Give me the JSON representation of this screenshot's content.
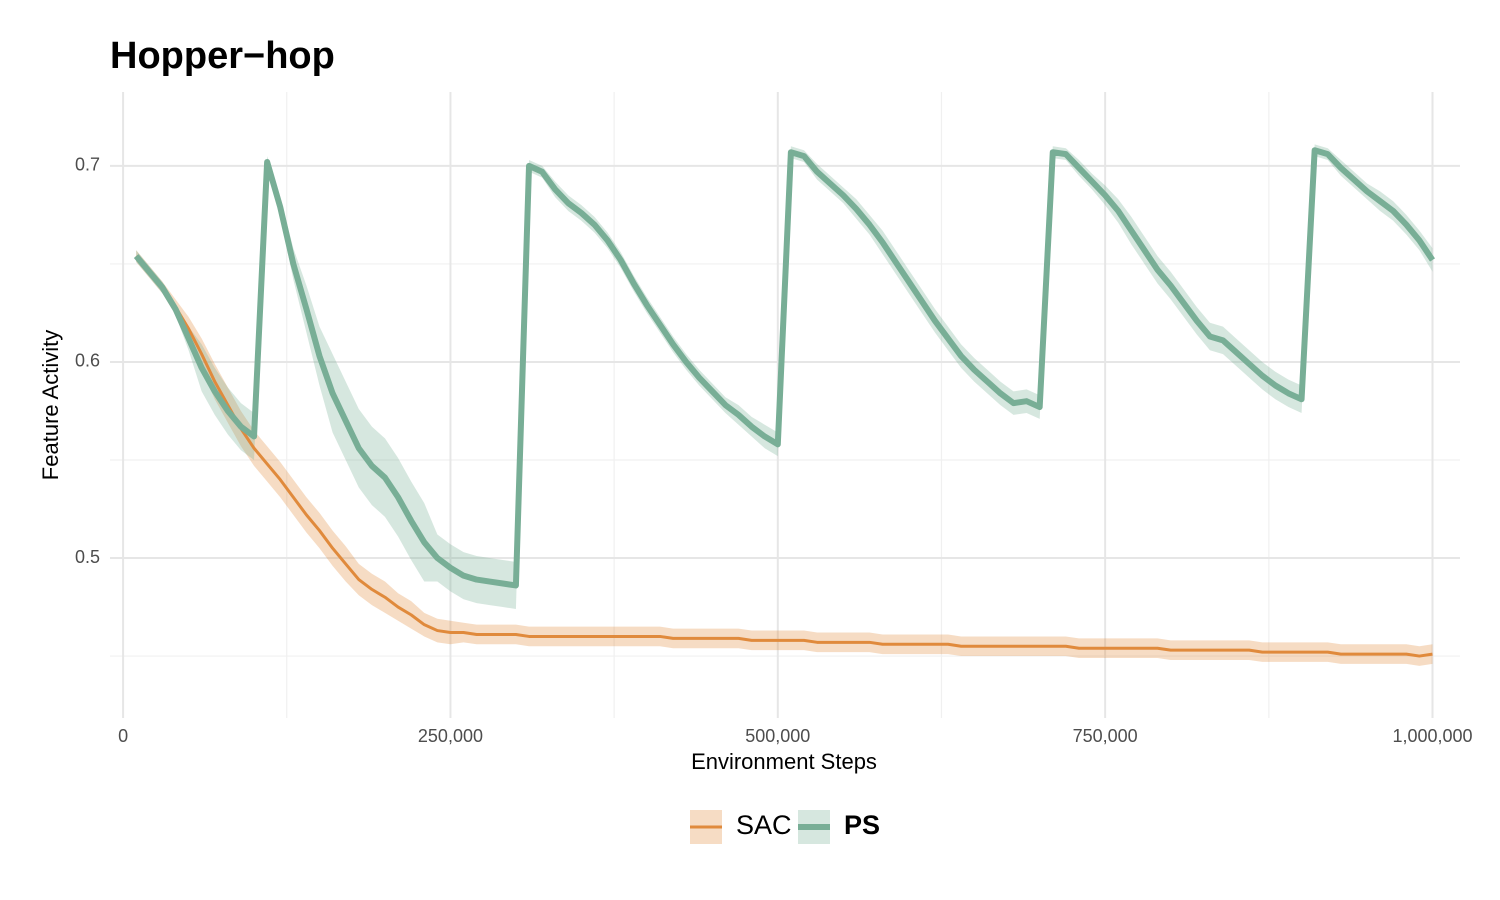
{
  "chart_data": {
    "type": "line",
    "title": "Hopper−hop",
    "x_label": "Environment Steps",
    "y_label": "Feature Activity",
    "xlim": [
      -10000,
      1021000
    ],
    "ylim": [
      0.4184,
      0.7377
    ],
    "xticks": [
      0,
      {
        "value": 250000,
        "label": "250,000"
      },
      {
        "value": 500000,
        "label": "500,000"
      },
      {
        "value": 750000,
        "label": "750,000"
      },
      {
        "value": 1000000,
        "label": "1,000,000"
      }
    ],
    "yticks": [
      0.5,
      0.6,
      0.7
    ],
    "x_minor_ticks": [
      125000,
      375000,
      625000,
      875000
    ],
    "y_minor_ticks": [
      0.45,
      0.55,
      0.65
    ],
    "grid": true,
    "legend_position": "bottom",
    "x": [
      10000,
      20000,
      30000,
      40000,
      50000,
      60000,
      70000,
      80000,
      90000,
      100000,
      110000,
      120000,
      130000,
      140000,
      150000,
      160000,
      170000,
      180000,
      190000,
      200000,
      210000,
      220000,
      230000,
      240000,
      250000,
      260000,
      270000,
      280000,
      290000,
      300000,
      310000,
      320000,
      330000,
      340000,
      350000,
      360000,
      370000,
      380000,
      390000,
      400000,
      410000,
      420000,
      430000,
      440000,
      450000,
      460000,
      470000,
      480000,
      490000,
      500000,
      510000,
      520000,
      530000,
      540000,
      550000,
      560000,
      570000,
      580000,
      590000,
      600000,
      610000,
      620000,
      630000,
      640000,
      650000,
      660000,
      670000,
      680000,
      690000,
      700000,
      710000,
      720000,
      730000,
      740000,
      750000,
      760000,
      770000,
      780000,
      790000,
      800000,
      810000,
      820000,
      830000,
      840000,
      850000,
      860000,
      870000,
      880000,
      890000,
      900000,
      910000,
      920000,
      930000,
      940000,
      950000,
      960000,
      970000,
      980000,
      990000,
      1000000
    ],
    "series": [
      {
        "name": "SAC",
        "color": "#e08a3c",
        "line_width": 3,
        "label_bold": false,
        "values": [
          0.654,
          0.646,
          0.638,
          0.628,
          0.617,
          0.604,
          0.59,
          0.578,
          0.566,
          0.556,
          0.548,
          0.54,
          0.531,
          0.522,
          0.514,
          0.505,
          0.497,
          0.489,
          0.484,
          0.48,
          0.475,
          0.471,
          0.466,
          0.463,
          0.462,
          0.462,
          0.461,
          0.461,
          0.461,
          0.461,
          0.46,
          0.46,
          0.46,
          0.46,
          0.46,
          0.46,
          0.46,
          0.46,
          0.46,
          0.46,
          0.46,
          0.459,
          0.459,
          0.459,
          0.459,
          0.459,
          0.459,
          0.458,
          0.458,
          0.458,
          0.458,
          0.458,
          0.457,
          0.457,
          0.457,
          0.457,
          0.457,
          0.456,
          0.456,
          0.456,
          0.456,
          0.456,
          0.456,
          0.455,
          0.455,
          0.455,
          0.455,
          0.455,
          0.455,
          0.455,
          0.455,
          0.455,
          0.454,
          0.454,
          0.454,
          0.454,
          0.454,
          0.454,
          0.454,
          0.453,
          0.453,
          0.453,
          0.453,
          0.453,
          0.453,
          0.453,
          0.452,
          0.452,
          0.452,
          0.452,
          0.452,
          0.452,
          0.451,
          0.451,
          0.451,
          0.451,
          0.451,
          0.451,
          0.45,
          0.451
        ],
        "errors": [
          0.003,
          0.003,
          0.003,
          0.004,
          0.006,
          0.008,
          0.009,
          0.009,
          0.009,
          0.009,
          0.009,
          0.009,
          0.009,
          0.009,
          0.009,
          0.009,
          0.009,
          0.008,
          0.008,
          0.008,
          0.007,
          0.007,
          0.006,
          0.006,
          0.006,
          0.005,
          0.005,
          0.005,
          0.005,
          0.005,
          0.005,
          0.005,
          0.005,
          0.005,
          0.005,
          0.005,
          0.005,
          0.005,
          0.005,
          0.005,
          0.005,
          0.005,
          0.005,
          0.005,
          0.005,
          0.005,
          0.005,
          0.005,
          0.005,
          0.005,
          0.005,
          0.005,
          0.005,
          0.005,
          0.005,
          0.005,
          0.005,
          0.005,
          0.005,
          0.005,
          0.005,
          0.005,
          0.005,
          0.005,
          0.005,
          0.005,
          0.005,
          0.005,
          0.005,
          0.005,
          0.005,
          0.005,
          0.005,
          0.005,
          0.005,
          0.005,
          0.005,
          0.005,
          0.005,
          0.005,
          0.005,
          0.005,
          0.005,
          0.005,
          0.005,
          0.005,
          0.005,
          0.005,
          0.005,
          0.005,
          0.005,
          0.005,
          0.005,
          0.005,
          0.005,
          0.005,
          0.005,
          0.005,
          0.005,
          0.005
        ]
      },
      {
        "name": "PS",
        "color": "#78ae96",
        "line_width": 6,
        "label_bold": true,
        "values": [
          0.654,
          0.646,
          0.638,
          0.627,
          0.612,
          0.597,
          0.585,
          0.575,
          0.567,
          0.562,
          0.702,
          0.679,
          0.65,
          0.627,
          0.603,
          0.584,
          0.57,
          0.556,
          0.547,
          0.541,
          0.531,
          0.519,
          0.508,
          0.5,
          0.495,
          0.491,
          0.489,
          0.488,
          0.487,
          0.486,
          0.7,
          0.697,
          0.688,
          0.681,
          0.676,
          0.67,
          0.662,
          0.652,
          0.64,
          0.629,
          0.619,
          0.609,
          0.6,
          0.592,
          0.585,
          0.578,
          0.573,
          0.567,
          0.562,
          0.558,
          0.707,
          0.705,
          0.697,
          0.691,
          0.685,
          0.678,
          0.67,
          0.661,
          0.651,
          0.641,
          0.631,
          0.621,
          0.612,
          0.603,
          0.596,
          0.59,
          0.584,
          0.579,
          0.58,
          0.577,
          0.707,
          0.706,
          0.699,
          0.692,
          0.685,
          0.677,
          0.667,
          0.657,
          0.647,
          0.639,
          0.63,
          0.621,
          0.613,
          0.611,
          0.605,
          0.599,
          0.593,
          0.588,
          0.584,
          0.581,
          0.708,
          0.706,
          0.699,
          0.693,
          0.687,
          0.682,
          0.677,
          0.67,
          0.662,
          0.652
        ],
        "errors": [
          0.003,
          0.003,
          0.003,
          0.003,
          0.006,
          0.012,
          0.012,
          0.012,
          0.012,
          0.012,
          0.003,
          0.005,
          0.008,
          0.012,
          0.015,
          0.02,
          0.02,
          0.02,
          0.02,
          0.02,
          0.02,
          0.02,
          0.02,
          0.012,
          0.012,
          0.012,
          0.012,
          0.012,
          0.012,
          0.012,
          0.003,
          0.003,
          0.004,
          0.004,
          0.004,
          0.004,
          0.004,
          0.004,
          0.004,
          0.004,
          0.004,
          0.004,
          0.004,
          0.004,
          0.004,
          0.004,
          0.005,
          0.005,
          0.006,
          0.006,
          0.003,
          0.003,
          0.004,
          0.004,
          0.004,
          0.005,
          0.005,
          0.006,
          0.006,
          0.006,
          0.006,
          0.006,
          0.006,
          0.006,
          0.006,
          0.006,
          0.006,
          0.006,
          0.006,
          0.006,
          0.003,
          0.003,
          0.004,
          0.004,
          0.005,
          0.006,
          0.007,
          0.007,
          0.007,
          0.007,
          0.007,
          0.007,
          0.007,
          0.007,
          0.007,
          0.007,
          0.007,
          0.007,
          0.007,
          0.007,
          0.003,
          0.003,
          0.004,
          0.004,
          0.004,
          0.005,
          0.005,
          0.005,
          0.005,
          0.006
        ]
      }
    ]
  }
}
